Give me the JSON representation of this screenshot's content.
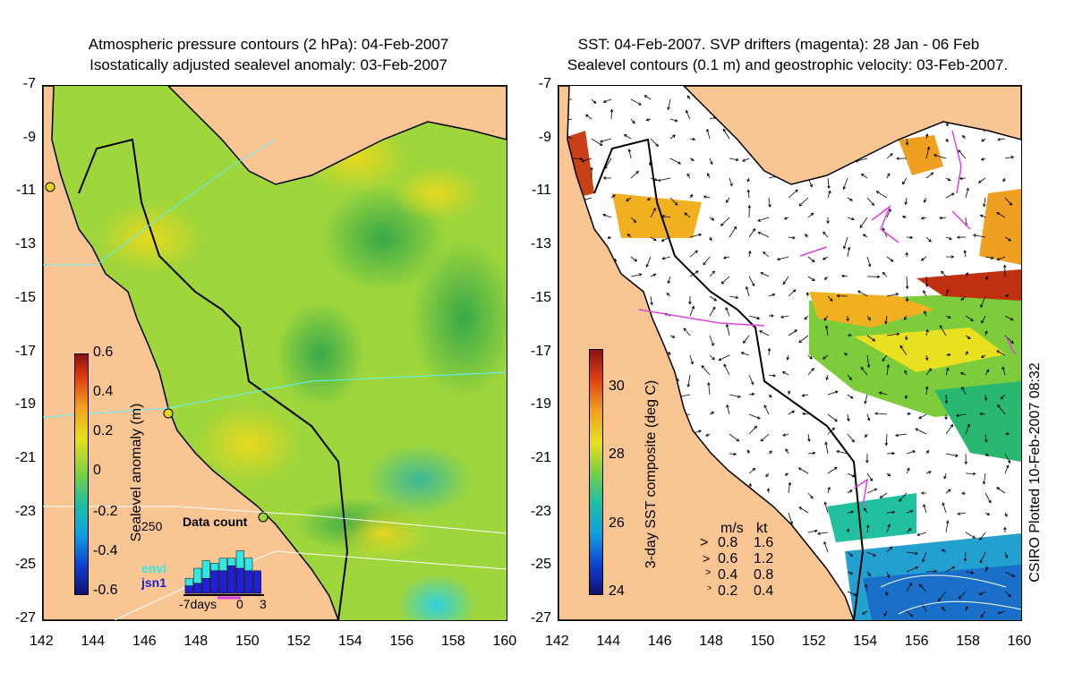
{
  "left": {
    "title1": "Atmospheric pressure contours (2 hPa): 04-Feb-2007",
    "title2": "Isostatically adjusted sealevel anomaly: 03-Feb-2007",
    "colorbar_label": "Sealevel anomaly (m)",
    "colorbar_ticks": [
      "0.6",
      "0.4",
      "0.2",
      "0",
      "-0.2",
      "-0.4",
      "-0.6"
    ],
    "inset": {
      "title": "Data count",
      "ymax_label": "250",
      "legend": [
        "envi",
        "jsn1"
      ],
      "legend_colors": [
        "#33e6e6",
        "#1f1fd6"
      ],
      "xlabels": [
        "-7days",
        "0",
        "3"
      ],
      "envi_counts": [
        60,
        100,
        130,
        120,
        140,
        140,
        170,
        140,
        80
      ],
      "jsn1_counts": [
        30,
        40,
        60,
        90,
        90,
        110,
        100,
        90,
        90
      ]
    }
  },
  "right": {
    "title1": "SST: 04-Feb-2007. SVP drifters (magenta): 28 Jan - 06 Feb",
    "title2": "Sealevel contours (0.1 m) and geostrophic velocity: 03-Feb-2007.",
    "colorbar_label": "3-day SST composite (deg C)",
    "colorbar_ticks": [
      "30",
      "28",
      "26",
      "24"
    ],
    "legend_header_ms": "m/s",
    "legend_header_kt": "kt",
    "legend_rows": [
      {
        "ms": "0.8",
        "kt": "1.6"
      },
      {
        "ms": "0.6",
        "kt": "1.2"
      },
      {
        "ms": "0.4",
        "kt": "0.8"
      },
      {
        "ms": "0.2",
        "kt": "0.4"
      }
    ],
    "credit": "CSIRO Plotted 10-Feb-2007 08:32"
  },
  "y_ticks": [
    "-7",
    "-9",
    "-11",
    "-13",
    "-15",
    "-17",
    "-19",
    "-21",
    "-23",
    "-25",
    "-27"
  ],
  "x_ticks": [
    "142",
    "144",
    "146",
    "148",
    "150",
    "152",
    "154",
    "156",
    "158",
    "160"
  ],
  "colors": {
    "land": "#f9c693",
    "ocean_base": "#9ed63c",
    "drifter": "#e040e0"
  }
}
